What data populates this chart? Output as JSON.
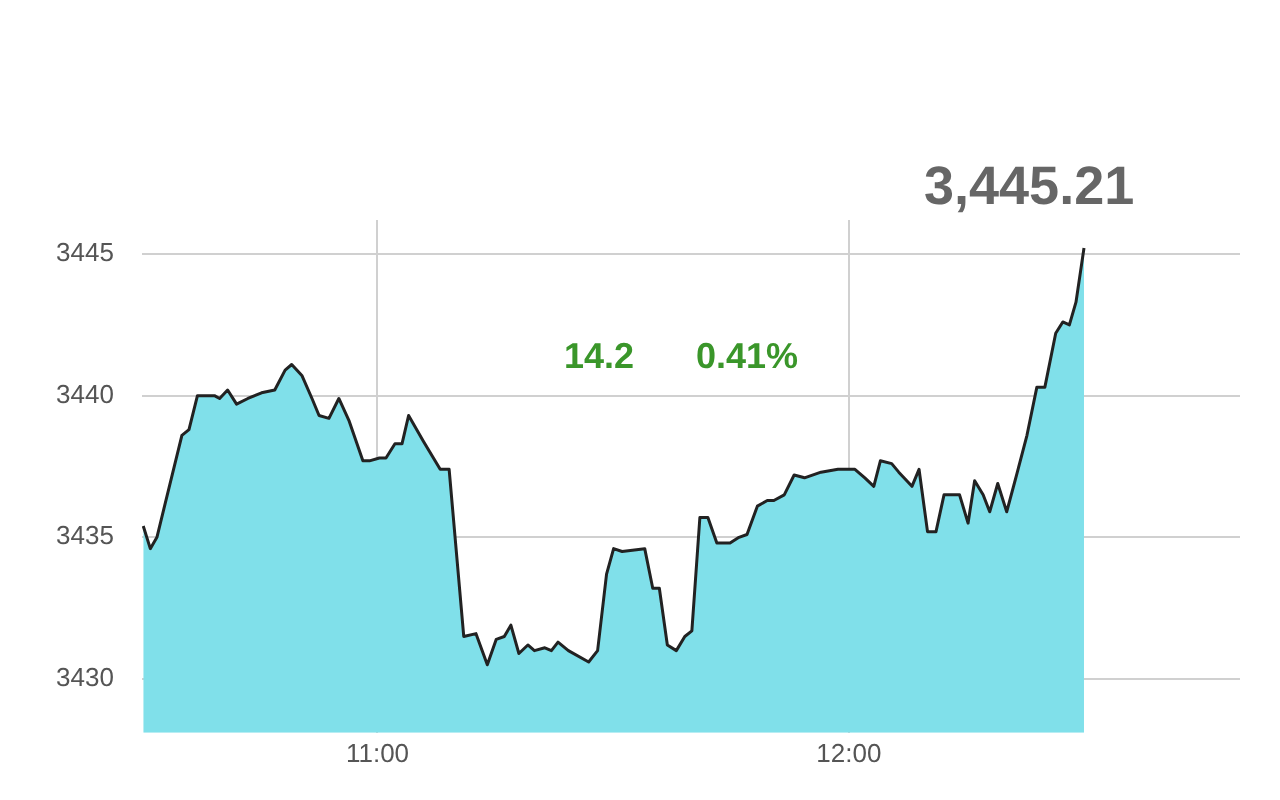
{
  "chart_data": {
    "type": "area",
    "annotations": [
      "3,445.21",
      "14.2",
      "0.41%"
    ],
    "x": [
      10.503,
      10.518,
      10.532,
      10.554,
      10.585,
      10.6,
      10.618,
      10.654,
      10.665,
      10.682,
      10.701,
      10.725,
      10.754,
      10.782,
      10.804,
      10.818,
      10.84,
      10.861,
      10.876,
      10.897,
      10.918,
      10.94,
      10.969,
      10.983,
      11.004,
      11.018,
      11.037,
      11.052,
      11.066,
      11.097,
      11.133,
      11.152,
      11.183,
      11.209,
      11.233,
      11.252,
      11.269,
      11.283,
      11.3,
      11.319,
      11.333,
      11.355,
      11.369,
      11.383,
      11.405,
      11.448,
      11.467,
      11.486,
      11.501,
      11.519,
      11.567,
      11.584,
      11.598,
      11.615,
      11.634,
      11.652,
      11.667,
      11.684,
      11.701,
      11.72,
      11.748,
      11.767,
      11.784,
      11.806,
      11.827,
      11.841,
      11.863,
      11.884,
      11.906,
      11.941,
      11.977,
      12.013,
      12.034,
      12.053,
      12.067,
      12.091,
      12.106,
      12.134,
      12.149,
      12.167,
      12.185,
      12.202,
      12.235,
      12.253,
      12.267,
      12.285,
      12.299,
      12.316,
      12.335,
      12.356,
      12.378,
      12.399,
      12.416,
      12.439,
      12.454,
      12.468,
      12.482,
      12.499
    ],
    "series": [
      {
        "color": "#80e0ea",
        "values": [
          3435.4,
          3434.6,
          3435.0,
          3436.5,
          3438.6,
          3438.8,
          3440.0,
          3440.0,
          3439.9,
          3440.2,
          3439.7,
          3439.9,
          3440.1,
          3440.2,
          3440.9,
          3441.1,
          3440.7,
          3439.9,
          3439.3,
          3439.2,
          3439.9,
          3439.1,
          3437.7,
          3437.7,
          3437.8,
          3437.8,
          3438.3,
          3438.3,
          3439.3,
          3438.4,
          3437.4,
          3437.4,
          3431.5,
          3431.6,
          3430.5,
          3431.4,
          3431.5,
          3431.9,
          3430.9,
          3431.2,
          3431.0,
          3431.1,
          3431.0,
          3431.3,
          3431.0,
          3430.6,
          3431.0,
          3433.7,
          3434.6,
          3434.5,
          3434.6,
          3433.2,
          3433.2,
          3431.2,
          3431.0,
          3431.5,
          3431.7,
          3435.7,
          3435.7,
          3434.8,
          3434.8,
          3435.0,
          3435.1,
          3436.1,
          3436.3,
          3436.3,
          3436.5,
          3437.2,
          3437.1,
          3437.3,
          3437.4,
          3437.4,
          3437.1,
          3436.8,
          3437.7,
          3437.6,
          3437.3,
          3436.8,
          3437.4,
          3435.2,
          3435.2,
          3436.5,
          3436.5,
          3435.5,
          3437.0,
          3436.5,
          3435.9,
          3436.9,
          3435.9,
          3437.2,
          3438.6,
          3440.3,
          3440.3,
          3442.2,
          3442.6,
          3442.5,
          3443.3,
          3445.21
        ]
      }
    ],
    "xlim": [
      10.5,
      12.83
    ],
    "xticks": [
      {
        "value": 11,
        "label": "11:00"
      },
      {
        "value": 12,
        "label": "12:00"
      }
    ],
    "ylim": [
      3428.1,
      3446.2
    ],
    "yticks": [
      3430,
      3435,
      3440,
      3445
    ],
    "grid": true,
    "legend": false,
    "marker": "none",
    "line_style": "solid"
  }
}
